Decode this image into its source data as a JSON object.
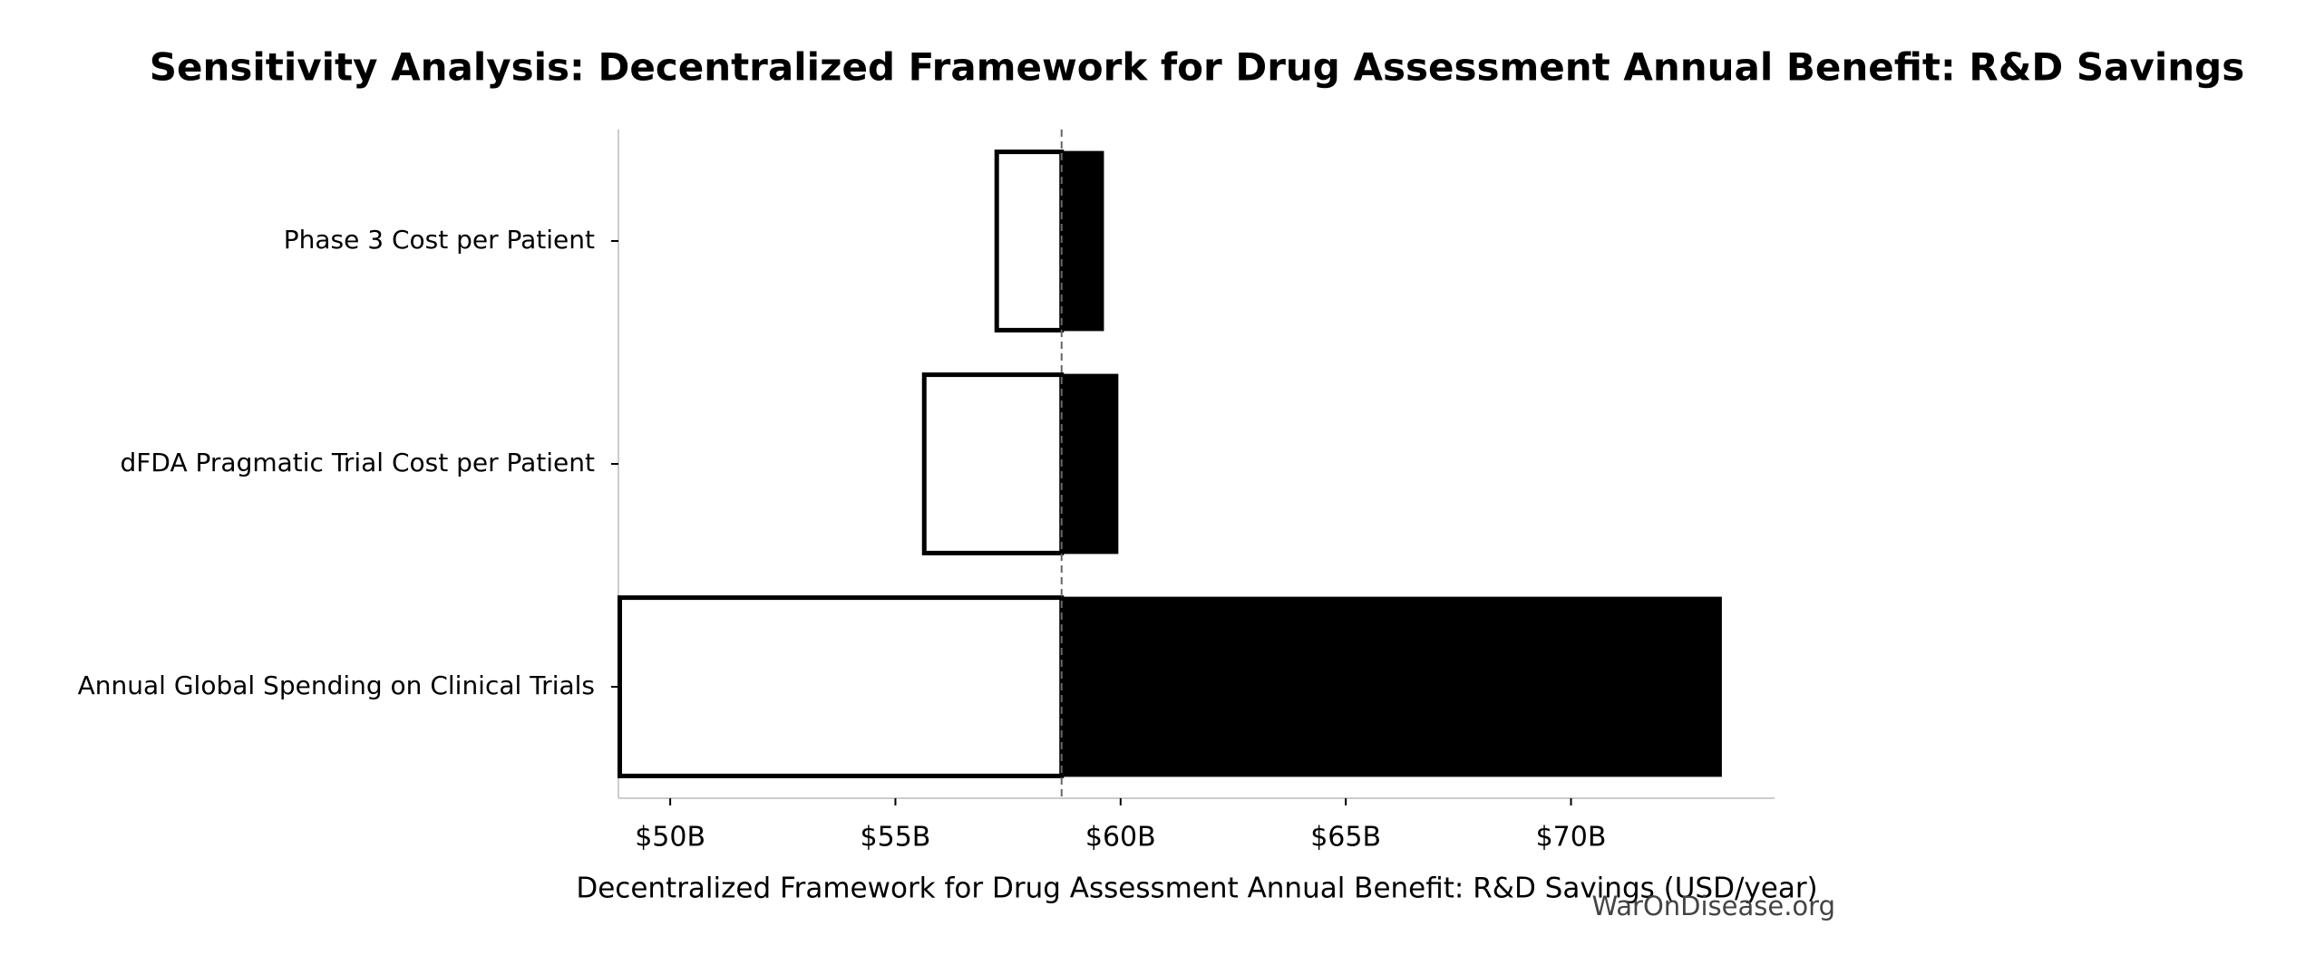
{
  "chart_data": {
    "type": "tornado",
    "title": "Sensitivity Analysis: Decentralized Framework for Drug Assessment Annual Benefit: R&D Savings",
    "xlabel": "Decentralized Framework for Drug Assessment Annual Benefit: R&D Savings (USD/year)",
    "watermark": "WarOnDisease.org",
    "categories": [
      "Phase 3 Cost per Patient",
      "dFDA Pragmatic Trial Cost per Patient",
      "Annual Global Spending on Clinical Trials"
    ],
    "low": [
      57.25,
      55.64,
      48.88
    ],
    "high": [
      59.61,
      59.93,
      73.33
    ],
    "baseline": 58.69,
    "low_color": "#ffffff",
    "high_color": "#000000",
    "xlim": [
      48.85,
      74.52
    ],
    "xticks": [
      {
        "value": 50,
        "label": "$50B"
      },
      {
        "value": 55,
        "label": "$55B"
      },
      {
        "value": 60,
        "label": "$60B"
      },
      {
        "value": 65,
        "label": "$65B"
      },
      {
        "value": 70,
        "label": "$70B"
      }
    ]
  }
}
